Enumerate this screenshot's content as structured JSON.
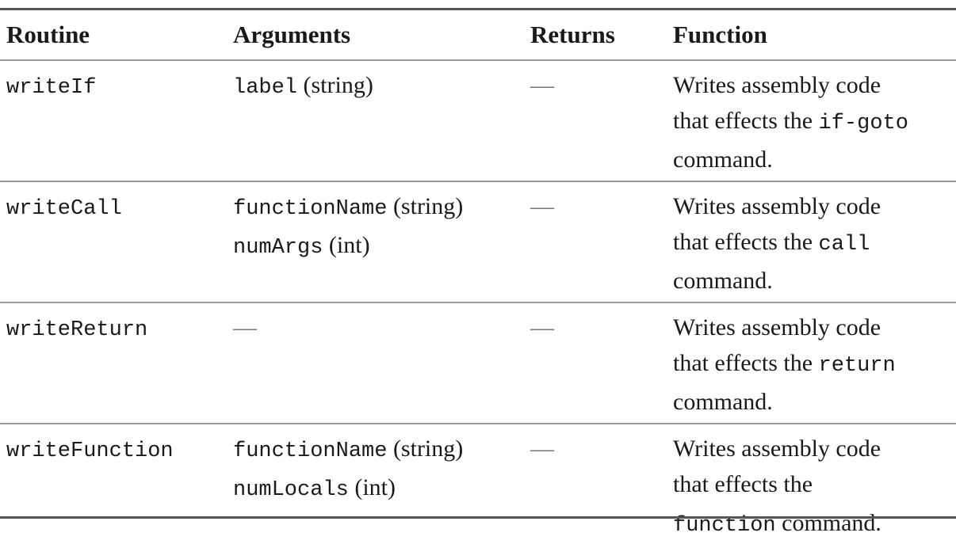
{
  "headers": {
    "routine": "Routine",
    "arguments": "Arguments",
    "returns": "Returns",
    "function": "Function"
  },
  "rows": [
    {
      "routine": "writeIf",
      "args": [
        {
          "name": "label",
          "type": "(string)"
        }
      ],
      "returns": "—",
      "desc_line1": "Writes assembly code",
      "desc_line2_text": "that effects the ",
      "desc_line2_code": "if-goto",
      "desc_line3_code": "",
      "desc_line3_text": "command."
    },
    {
      "routine": "writeCall",
      "args": [
        {
          "name": "functionName",
          "type": "(string)"
        },
        {
          "name": "numArgs",
          "type": "(int)"
        }
      ],
      "returns": "—",
      "desc_line1": "Writes assembly code",
      "desc_line2_text": "that effects the ",
      "desc_line2_code": "call",
      "desc_line3_code": "",
      "desc_line3_text": "command."
    },
    {
      "routine": "writeReturn",
      "args_dash": "—",
      "returns": "—",
      "desc_line1": "Writes assembly code",
      "desc_line2_text": "that effects the ",
      "desc_line2_code": "return",
      "desc_line3_code": "",
      "desc_line3_text": "command."
    },
    {
      "routine": "writeFunction",
      "args": [
        {
          "name": "functionName",
          "type": "(string)"
        },
        {
          "name": "numLocals",
          "type": "(int)"
        }
      ],
      "returns": "—",
      "desc_line1": "Writes assembly code",
      "desc_line2_text": "that effects the",
      "desc_line2_code": "",
      "desc_line3_code": "function",
      "desc_line3_text": " command."
    }
  ]
}
